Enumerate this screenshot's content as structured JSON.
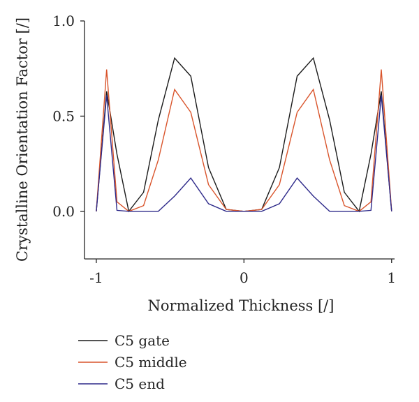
{
  "chart_data": {
    "type": "line",
    "title": "",
    "xlabel": "Normalized Thickness [/]",
    "ylabel": "Crystalline Orientation Factor [/]",
    "xlim": [
      -1.08,
      1.02
    ],
    "ylim": [
      -0.25,
      1.0
    ],
    "x_ticks": [
      -1,
      0,
      1
    ],
    "x_tick_labels": [
      "-1",
      "0",
      "1"
    ],
    "y_ticks": [
      0.0,
      0.5,
      1.0
    ],
    "y_tick_labels": [
      "0.0",
      "0.5",
      "1.0"
    ],
    "grid": false,
    "legend_position": "bottom-left",
    "series": [
      {
        "name": "C5 gate",
        "color": "#1a1a1a",
        "x": [
          -1,
          -0.93,
          -0.86,
          -0.78,
          -0.68,
          -0.58,
          -0.47,
          -0.36,
          -0.24,
          -0.12,
          0,
          0.12,
          0.24,
          0.36,
          0.47,
          0.58,
          0.68,
          0.78,
          0.86,
          0.93,
          1
        ],
        "y": [
          0.0,
          0.63,
          0.3,
          0.0,
          0.1,
          0.48,
          0.805,
          0.71,
          0.23,
          0.01,
          0.0,
          0.01,
          0.23,
          0.71,
          0.805,
          0.48,
          0.1,
          0.0,
          0.3,
          0.63,
          0.0
        ]
      },
      {
        "name": "C5 middle",
        "color": "#d9542b",
        "x": [
          -1,
          -0.93,
          -0.86,
          -0.78,
          -0.68,
          -0.58,
          -0.47,
          -0.36,
          -0.24,
          -0.12,
          0,
          0.12,
          0.24,
          0.36,
          0.47,
          0.58,
          0.68,
          0.78,
          0.86,
          0.93,
          1
        ],
        "y": [
          0.0,
          0.745,
          0.05,
          0.0,
          0.03,
          0.27,
          0.64,
          0.52,
          0.14,
          0.01,
          0.0,
          0.01,
          0.14,
          0.52,
          0.64,
          0.27,
          0.03,
          0.0,
          0.05,
          0.745,
          0.0
        ]
      },
      {
        "name": "C5 end",
        "color": "#2e2a8a",
        "x": [
          -1,
          -0.93,
          -0.86,
          -0.78,
          -0.68,
          -0.58,
          -0.47,
          -0.36,
          -0.24,
          -0.12,
          0,
          0.12,
          0.24,
          0.36,
          0.47,
          0.58,
          0.68,
          0.78,
          0.86,
          0.93,
          1
        ],
        "y": [
          0.0,
          0.61,
          0.005,
          0.0,
          0.0,
          0.0,
          0.08,
          0.175,
          0.04,
          0.0,
          0.0,
          0.0,
          0.04,
          0.175,
          0.08,
          0.0,
          0.0,
          0.0,
          0.005,
          0.61,
          0.0
        ]
      }
    ]
  }
}
